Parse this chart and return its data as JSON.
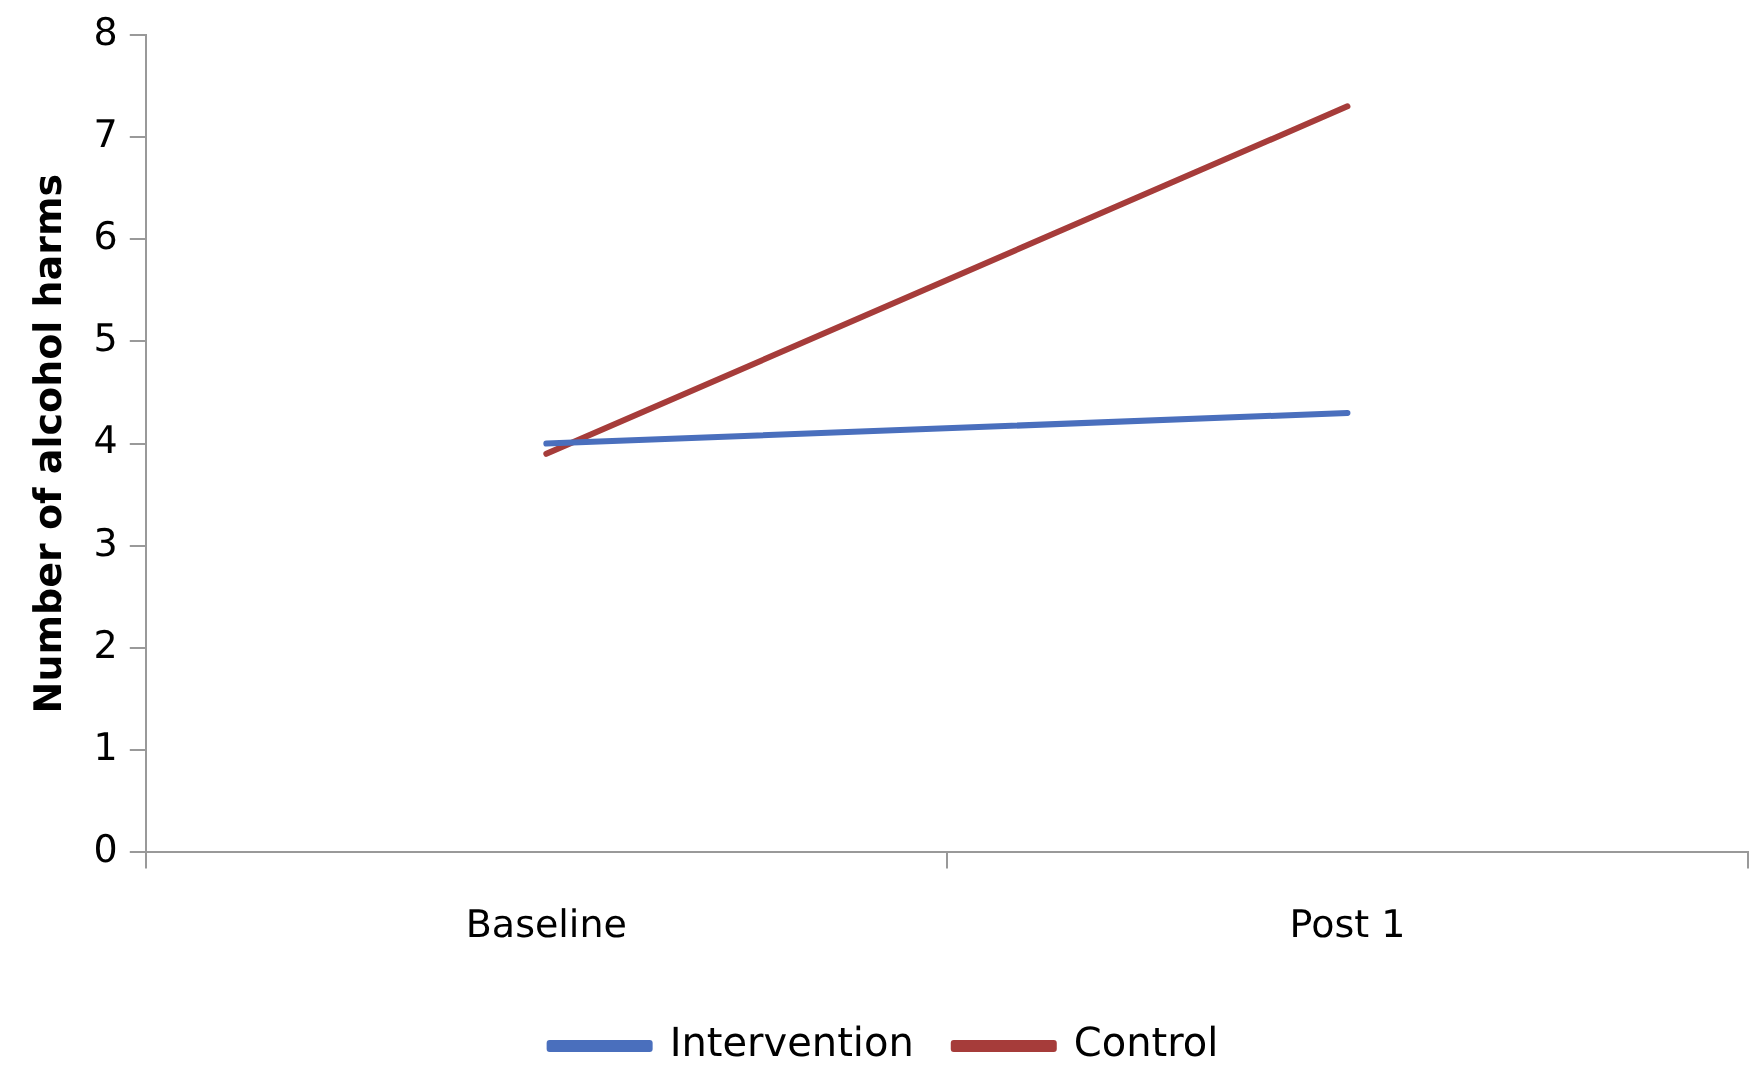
{
  "chart_data": {
    "type": "line",
    "ylabel": "Number of alcohol harms",
    "categories": [
      "Baseline",
      "Post 1"
    ],
    "series": [
      {
        "name": "Intervention",
        "color": "#4a6fbd",
        "values": [
          4.0,
          4.3
        ]
      },
      {
        "name": "Control",
        "color": "#a63c3a",
        "values": [
          3.9,
          7.3
        ]
      }
    ],
    "ylim": [
      0,
      8
    ],
    "yticks": [
      0,
      1,
      2,
      3,
      4,
      5,
      6,
      7,
      8
    ],
    "grid": false,
    "legend": "bottom",
    "marker": "none",
    "line_style": "solid"
  }
}
